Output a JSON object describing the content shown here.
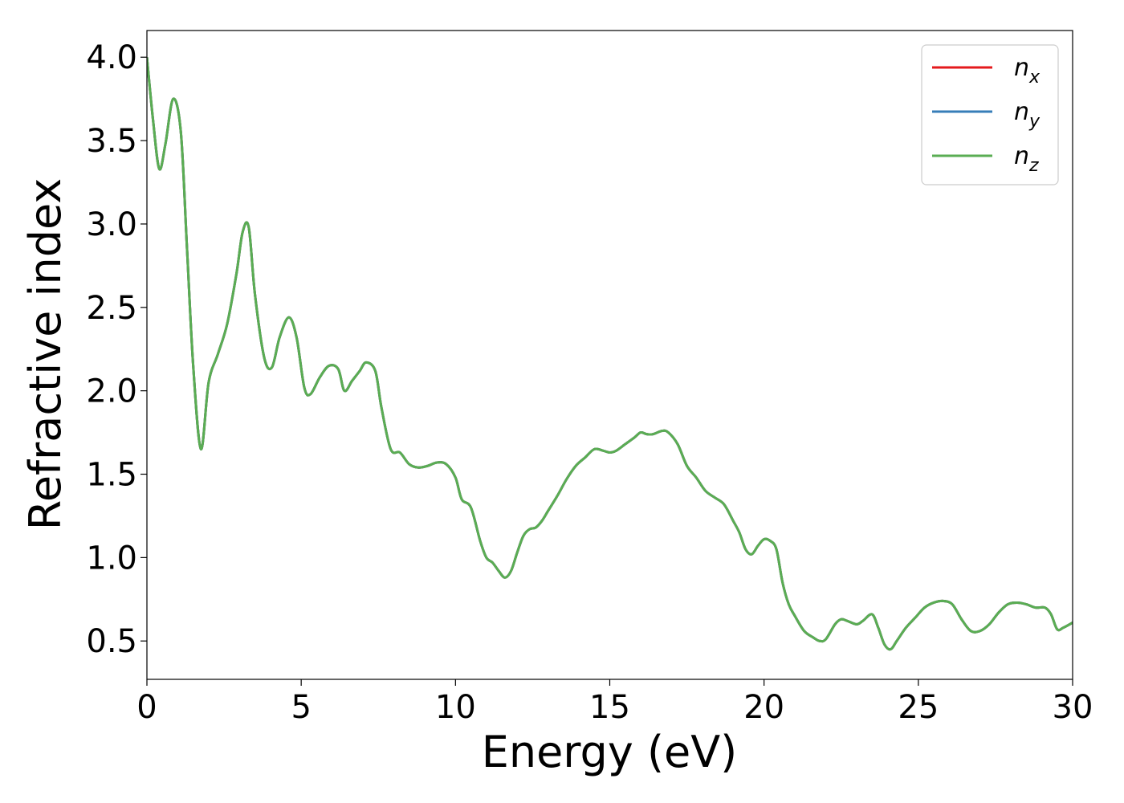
{
  "chart_data": {
    "type": "line",
    "xlabel": "Energy (eV)",
    "ylabel": "Refractive index",
    "xlim": [
      0,
      30
    ],
    "ylim": [
      0.27,
      4.16
    ],
    "xticks": [
      0,
      5,
      10,
      15,
      20,
      25,
      30
    ],
    "xtick_labels": [
      "0",
      "5",
      "10",
      "15",
      "20",
      "25",
      "30"
    ],
    "yticks": [
      0.5,
      1.0,
      1.5,
      2.0,
      2.5,
      3.0,
      3.5,
      4.0
    ],
    "ytick_labels": [
      "0.5",
      "1.0",
      "1.5",
      "2.0",
      "2.5",
      "3.0",
      "3.5",
      "4.0"
    ],
    "grid": false,
    "legend_position": "top-right",
    "x": [
      0,
      0.2,
      0.4,
      0.6,
      0.85,
      1.1,
      1.3,
      1.5,
      1.75,
      2.0,
      2.3,
      2.6,
      2.9,
      3.1,
      3.3,
      3.5,
      3.8,
      4.05,
      4.3,
      4.6,
      4.85,
      5.1,
      5.3,
      5.6,
      5.9,
      6.2,
      6.4,
      6.65,
      6.9,
      7.1,
      7.4,
      7.6,
      7.9,
      8.2,
      8.5,
      8.8,
      9.1,
      9.4,
      9.7,
      10.0,
      10.2,
      10.5,
      10.8,
      11.0,
      11.2,
      11.4,
      11.6,
      11.8,
      12.0,
      12.2,
      12.4,
      12.6,
      12.8,
      13.0,
      13.3,
      13.6,
      13.9,
      14.2,
      14.5,
      14.8,
      15.0,
      15.2,
      15.5,
      15.8,
      16.0,
      16.2,
      16.4,
      16.7,
      16.9,
      17.2,
      17.5,
      17.8,
      18.1,
      18.4,
      18.7,
      19.0,
      19.2,
      19.4,
      19.6,
      19.8,
      20.0,
      20.2,
      20.4,
      20.6,
      20.8,
      21.0,
      21.3,
      21.6,
      21.8,
      22.0,
      22.3,
      22.5,
      22.7,
      23.0,
      23.2,
      23.5,
      23.7,
      23.9,
      24.1,
      24.3,
      24.6,
      24.9,
      25.2,
      25.5,
      25.8,
      26.1,
      26.4,
      26.7,
      27.0,
      27.3,
      27.6,
      27.9,
      28.2,
      28.5,
      28.8,
      29.1,
      29.3,
      29.5,
      29.7,
      30.0
    ],
    "series": [
      {
        "name": "n_x",
        "label_main": "n",
        "label_sub": "x",
        "color": "#e41a1c",
        "y": [
          4.0,
          3.62,
          3.33,
          3.48,
          3.75,
          3.55,
          2.85,
          2.15,
          1.65,
          2.05,
          2.22,
          2.4,
          2.7,
          2.95,
          2.98,
          2.58,
          2.2,
          2.14,
          2.32,
          2.44,
          2.32,
          2.02,
          1.98,
          2.08,
          2.15,
          2.13,
          2.0,
          2.06,
          2.12,
          2.17,
          2.12,
          1.9,
          1.65,
          1.63,
          1.56,
          1.54,
          1.55,
          1.57,
          1.56,
          1.48,
          1.35,
          1.3,
          1.1,
          1.0,
          0.97,
          0.92,
          0.88,
          0.92,
          1.03,
          1.13,
          1.17,
          1.18,
          1.22,
          1.28,
          1.37,
          1.47,
          1.55,
          1.6,
          1.65,
          1.64,
          1.63,
          1.64,
          1.68,
          1.72,
          1.75,
          1.74,
          1.74,
          1.76,
          1.75,
          1.68,
          1.55,
          1.48,
          1.4,
          1.36,
          1.32,
          1.22,
          1.15,
          1.05,
          1.02,
          1.07,
          1.11,
          1.1,
          1.05,
          0.85,
          0.72,
          0.65,
          0.56,
          0.52,
          0.5,
          0.51,
          0.6,
          0.63,
          0.62,
          0.6,
          0.62,
          0.66,
          0.58,
          0.48,
          0.45,
          0.5,
          0.58,
          0.64,
          0.7,
          0.73,
          0.74,
          0.72,
          0.63,
          0.56,
          0.56,
          0.6,
          0.67,
          0.72,
          0.73,
          0.72,
          0.7,
          0.7,
          0.66,
          0.57,
          0.58,
          0.61
        ]
      },
      {
        "name": "n_y",
        "label_main": "n",
        "label_sub": "y",
        "color": "#377eb8",
        "y": [
          4.0,
          3.62,
          3.33,
          3.48,
          3.75,
          3.55,
          2.85,
          2.15,
          1.65,
          2.05,
          2.22,
          2.4,
          2.7,
          2.95,
          2.98,
          2.58,
          2.2,
          2.14,
          2.32,
          2.44,
          2.32,
          2.02,
          1.98,
          2.08,
          2.15,
          2.13,
          2.0,
          2.06,
          2.12,
          2.17,
          2.12,
          1.9,
          1.65,
          1.63,
          1.56,
          1.54,
          1.55,
          1.57,
          1.56,
          1.48,
          1.35,
          1.3,
          1.1,
          1.0,
          0.97,
          0.92,
          0.88,
          0.92,
          1.03,
          1.13,
          1.17,
          1.18,
          1.22,
          1.28,
          1.37,
          1.47,
          1.55,
          1.6,
          1.65,
          1.64,
          1.63,
          1.64,
          1.68,
          1.72,
          1.75,
          1.74,
          1.74,
          1.76,
          1.75,
          1.68,
          1.55,
          1.48,
          1.4,
          1.36,
          1.32,
          1.22,
          1.15,
          1.05,
          1.02,
          1.07,
          1.11,
          1.1,
          1.05,
          0.85,
          0.72,
          0.65,
          0.56,
          0.52,
          0.5,
          0.51,
          0.6,
          0.63,
          0.62,
          0.6,
          0.62,
          0.66,
          0.58,
          0.48,
          0.45,
          0.5,
          0.58,
          0.64,
          0.7,
          0.73,
          0.74,
          0.72,
          0.63,
          0.56,
          0.56,
          0.6,
          0.67,
          0.72,
          0.73,
          0.72,
          0.7,
          0.7,
          0.66,
          0.57,
          0.58,
          0.61
        ]
      },
      {
        "name": "n_z",
        "label_main": "n",
        "label_sub": "z",
        "color": "#5aad53",
        "y": [
          4.0,
          3.62,
          3.33,
          3.48,
          3.75,
          3.55,
          2.85,
          2.15,
          1.65,
          2.05,
          2.22,
          2.4,
          2.7,
          2.95,
          2.98,
          2.58,
          2.2,
          2.14,
          2.32,
          2.44,
          2.32,
          2.02,
          1.98,
          2.08,
          2.15,
          2.13,
          2.0,
          2.06,
          2.12,
          2.17,
          2.12,
          1.9,
          1.65,
          1.63,
          1.56,
          1.54,
          1.55,
          1.57,
          1.56,
          1.48,
          1.35,
          1.3,
          1.1,
          1.0,
          0.97,
          0.92,
          0.88,
          0.92,
          1.03,
          1.13,
          1.17,
          1.18,
          1.22,
          1.28,
          1.37,
          1.47,
          1.55,
          1.6,
          1.65,
          1.64,
          1.63,
          1.64,
          1.68,
          1.72,
          1.75,
          1.74,
          1.74,
          1.76,
          1.75,
          1.68,
          1.55,
          1.48,
          1.4,
          1.36,
          1.32,
          1.22,
          1.15,
          1.05,
          1.02,
          1.07,
          1.11,
          1.1,
          1.05,
          0.85,
          0.72,
          0.65,
          0.56,
          0.52,
          0.5,
          0.51,
          0.6,
          0.63,
          0.62,
          0.6,
          0.62,
          0.66,
          0.58,
          0.48,
          0.45,
          0.5,
          0.58,
          0.64,
          0.7,
          0.73,
          0.74,
          0.72,
          0.63,
          0.56,
          0.56,
          0.6,
          0.67,
          0.72,
          0.73,
          0.72,
          0.7,
          0.7,
          0.66,
          0.57,
          0.58,
          0.61
        ]
      }
    ]
  }
}
